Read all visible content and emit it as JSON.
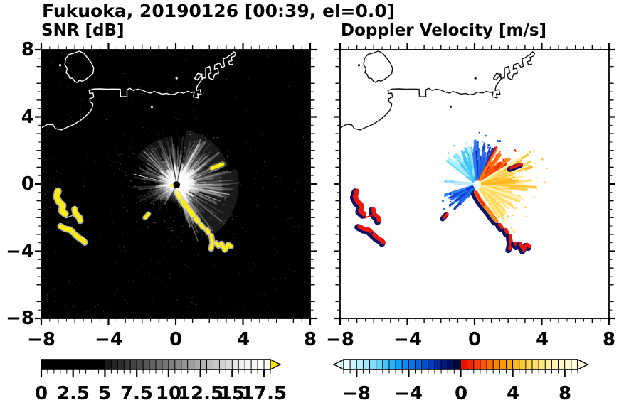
{
  "title": "Fukuoka, 20190126 [00:39, el=0.0]",
  "panels": {
    "snr": {
      "label": "SNR [dB]"
    },
    "doppler": {
      "label": "Doppler Velocity [m/s]"
    }
  },
  "chart_data": {
    "type": "heatmap",
    "subtype": "dual-radar-ppi",
    "site": "Fukuoka",
    "date": "20190126",
    "time": "00:39",
    "elevation": "0.0",
    "axes": {
      "xlim": [
        -8,
        8
      ],
      "ylim": [
        -8,
        8
      ],
      "tick_values": [
        -8,
        -4,
        0,
        4,
        8
      ],
      "x_tick_labels": [
        "−8",
        "−4",
        "0",
        "4",
        "8"
      ],
      "y_tick_labels": [
        "8",
        "4",
        "0",
        "−4",
        "−8"
      ],
      "y_tick_values": [
        8,
        4,
        0,
        -4,
        -8
      ],
      "minor_tick_step": 0.5,
      "grid": false
    },
    "snr": {
      "label": "SNR [dB]",
      "background": "#000000",
      "coast_color": "#ffffff",
      "blob_core": "#ffee00",
      "blob_halo": "#cccccc",
      "center": {
        "x": 0.05,
        "y": -0.05,
        "disk": "#000000",
        "disk_r": 5
      },
      "colorbar": {
        "min": 0,
        "max": 18,
        "tick_values": [
          0,
          2.5,
          5,
          7.5,
          10,
          12.5,
          15,
          17.5
        ],
        "tick_labels": [
          "0",
          "2.5",
          "5",
          "7.5",
          "10",
          "12.5",
          "15",
          "17.5"
        ],
        "over_color": "#ffe800",
        "segments": [
          "#000000",
          "#000000",
          "#000000",
          "#000000",
          "#000000",
          "#000000",
          "#000000",
          "#000000",
          "#000000",
          "#000000",
          "#1a1a1a",
          "#242424",
          "#2e2e2e",
          "#383838",
          "#424242",
          "#4c4c4c",
          "#565656",
          "#616161",
          "#6b6b6b",
          "#757575",
          "#7f7f7f",
          "#898989",
          "#949494",
          "#9e9e9e",
          "#a8a8a8",
          "#b2b2b2",
          "#bcbcbc",
          "#c7c7c7",
          "#d1d1d1",
          "#dbdbdb",
          "#e5e5e5",
          "#efefef",
          "#f4f4f4",
          "#f8f8f8",
          "#fcfcfc",
          "#ffffff"
        ]
      },
      "sectors": [
        {
          "a0": 15,
          "a1": 90,
          "rmax": 3.2,
          "n": 95,
          "o": 0.9
        },
        {
          "a0": 90,
          "a1": 150,
          "rmax": 2.9,
          "n": 60,
          "o": 0.75
        },
        {
          "a0": -75,
          "a1": 15,
          "rmax": 3.6,
          "n": 100,
          "o": 0.85
        },
        {
          "a0": 150,
          "a1": 208,
          "rmax": 2.6,
          "n": 42,
          "o": 0.6
        },
        {
          "a0": 208,
          "a1": 240,
          "rmax": 1.9,
          "n": 20,
          "o": 0.5
        },
        {
          "a0": 256,
          "a1": 286,
          "rmax": 1.3,
          "n": 14,
          "o": 0.5
        }
      ],
      "haze": [
        {
          "a0": 20,
          "a1": 80,
          "r": 3.3,
          "o": 0.1
        },
        {
          "a0": -60,
          "a1": 15,
          "r": 3.7,
          "o": 0.1
        },
        {
          "a0": 95,
          "a1": 145,
          "r": 2.9,
          "o": 0.08
        },
        {
          "a0": -15,
          "a1": 25,
          "r": 2.7,
          "o": 0.09
        }
      ],
      "dark_wedges": [
        {
          "a0": 240,
          "a1": 246,
          "r": 2.4
        },
        {
          "a0": 250,
          "a1": 257,
          "r": 2.1
        },
        {
          "a0": 260,
          "a1": 264,
          "r": 1.3
        }
      ],
      "thin_ray": {
        "angle": 166,
        "len": 2.6
      },
      "dark_rays": [
        {
          "angle": 78,
          "len": 2.2
        },
        {
          "angle": 100,
          "len": 2.0
        }
      ]
    },
    "doppler": {
      "label": "Doppler Velocity [m/s]",
      "background": "#ffffff",
      "coast_color": "#111111",
      "blob_core": "#e8180c",
      "blob_halo": "#0a1464",
      "chain_inner_color": "#ff8c1e",
      "chain_inner_hot": "#f03000",
      "center": {
        "x": 0.15,
        "y": -0.03,
        "disk": "#ffffff",
        "disk_r": 5.5
      },
      "colorbar": {
        "min": -9,
        "max": 9,
        "tick_values": [
          -8,
          -4,
          0,
          4,
          8
        ],
        "tick_labels": [
          "−8",
          "−4",
          "0",
          "4",
          "8"
        ],
        "under_color": "#e9ffff",
        "over_color": "#fffee0",
        "segments": [
          "#e9ffff",
          "#d2f8ff",
          "#b9f0ff",
          "#9fe7ff",
          "#83dcff",
          "#66d0ff",
          "#48c2ff",
          "#2ab2ff",
          "#12a0ff",
          "#058cfa",
          "#0477ee",
          "#0463e1",
          "#044ed3",
          "#0339bd",
          "#02289e",
          "#021a7e",
          "#01105c",
          "#010840",
          "#ea1004",
          "#f52300",
          "#fc3c00",
          "#ff5500",
          "#ff6e00",
          "#ff8500",
          "#ff9900",
          "#ffab0c",
          "#ffbb20",
          "#ffc938",
          "#ffd551",
          "#ffdf6a",
          "#ffe784",
          "#ffee9b",
          "#fff3b0",
          "#fff7c2",
          "#fffbd2",
          "#fffee0"
        ]
      },
      "sectors": [
        {
          "a0": 97,
          "a1": 143,
          "rmax": 2.3,
          "n": 55,
          "colors": [
            "#a8ecff",
            "#6fdcff",
            "#3ec4fb",
            "#bff2ff"
          ]
        },
        {
          "a0": 63,
          "a1": 97,
          "rmax": 2.7,
          "n": 48,
          "colors": [
            "#1e5be8",
            "#0a37ce",
            "#0a1e9e",
            "#2e79f2"
          ]
        },
        {
          "a0": 33,
          "a1": 63,
          "rmax": 2.5,
          "n": 40,
          "colors": [
            "#ff5a00",
            "#f23000",
            "#ff7e14",
            "#e81c0c"
          ]
        },
        {
          "a0": -12,
          "a1": 33,
          "rmax": 3.5,
          "n": 60,
          "colors": [
            "#ffc83c",
            "#ffde7a",
            "#ffb41e",
            "#fff0a8"
          ]
        },
        {
          "a0": -58,
          "a1": -12,
          "rmax": 2.9,
          "n": 55,
          "colors": [
            "#ffe98c",
            "#fff3bc",
            "#ffd34d",
            "#ffde6e"
          ]
        },
        {
          "a0": 196,
          "a1": 233,
          "rmax": 2.1,
          "n": 40,
          "colors": [
            "#1e6ef0",
            "#0a46d8",
            "#3c8cfa",
            "#0a2fb4"
          ]
        },
        {
          "a0": 173,
          "a1": 183,
          "rmax": 2.1,
          "n": 10,
          "colors": [
            "#8fd8ff",
            "#bfeaff"
          ]
        }
      ]
    },
    "features": {
      "coast_mainland": [
        [
          -8,
          3.35
        ],
        [
          -7.62,
          3.55
        ],
        [
          -7.3,
          3.52
        ],
        [
          -7.15,
          3.3
        ],
        [
          -6.8,
          3.22
        ],
        [
          -6.45,
          3.38
        ],
        [
          -6.05,
          3.55
        ],
        [
          -5.65,
          3.8
        ],
        [
          -5.3,
          4.1
        ],
        [
          -5.0,
          4.45
        ],
        [
          -4.92,
          4.78
        ],
        [
          -5.08,
          4.88
        ],
        [
          -5.12,
          5.08
        ],
        [
          -4.88,
          5.18
        ],
        [
          -4.92,
          5.42
        ],
        [
          -5.12,
          5.4
        ],
        [
          -5.15,
          5.58
        ],
        [
          -4.9,
          5.66
        ],
        [
          -4.5,
          5.67
        ],
        [
          -4.1,
          5.65
        ],
        [
          -3.72,
          5.66
        ],
        [
          -3.3,
          5.65
        ],
        [
          -3.28,
          5.2
        ],
        [
          -2.9,
          5.2
        ],
        [
          -2.9,
          5.62
        ],
        [
          -2.72,
          5.7
        ],
        [
          -2.52,
          5.58
        ],
        [
          -2.28,
          5.65
        ],
        [
          -2.0,
          5.6
        ],
        [
          -1.75,
          5.48
        ],
        [
          -1.5,
          5.42
        ],
        [
          -1.28,
          5.52
        ],
        [
          -1.05,
          5.44
        ],
        [
          -0.8,
          5.36
        ],
        [
          -0.55,
          5.4
        ],
        [
          -0.3,
          5.32
        ],
        [
          -0.05,
          5.36
        ],
        [
          0.2,
          5.48
        ],
        [
          0.45,
          5.42
        ],
        [
          0.7,
          5.52
        ],
        [
          0.95,
          5.45
        ],
        [
          1.1,
          5.5
        ],
        [
          1.05,
          5.2
        ],
        [
          1.35,
          5.12
        ],
        [
          1.3,
          5.38
        ],
        [
          1.52,
          5.32
        ],
        [
          1.45,
          5.62
        ],
        [
          1.22,
          5.58
        ],
        [
          1.28,
          5.85
        ],
        [
          1.62,
          6.32
        ],
        [
          1.5,
          6.45
        ],
        [
          1.28,
          6.2
        ],
        [
          1.12,
          6.28
        ],
        [
          1.3,
          6.58
        ],
        [
          1.56,
          6.55
        ],
        [
          1.56,
          6.3
        ],
        [
          1.78,
          6.32
        ],
        [
          1.78,
          6.92
        ],
        [
          2.02,
          7.0
        ],
        [
          2.1,
          6.62
        ],
        [
          1.95,
          6.55
        ],
        [
          2.0,
          6.3
        ],
        [
          2.22,
          6.22
        ],
        [
          2.32,
          6.55
        ],
        [
          2.55,
          6.6
        ],
        [
          2.5,
          6.9
        ],
        [
          2.3,
          6.85
        ],
        [
          2.32,
          7.1
        ],
        [
          2.6,
          7.2
        ],
        [
          2.75,
          6.95
        ],
        [
          2.9,
          7.02
        ],
        [
          2.82,
          7.45
        ],
        [
          3.0,
          7.52
        ],
        [
          3.3,
          7.72
        ],
        [
          3.45,
          7.88
        ],
        [
          3.58,
          7.8
        ],
        [
          3.5,
          7.62
        ],
        [
          3.3,
          7.55
        ],
        [
          3.35,
          7.35
        ],
        [
          3.15,
          7.3
        ],
        [
          3.2,
          7.1
        ],
        [
          3.42,
          7.15
        ]
      ],
      "coast_island": [
        [
          -6.55,
          7.48
        ],
        [
          -6.35,
          7.72
        ],
        [
          -6.05,
          7.8
        ],
        [
          -5.72,
          7.92
        ],
        [
          -5.45,
          7.78
        ],
        [
          -5.25,
          7.52
        ],
        [
          -5.02,
          7.22
        ],
        [
          -4.88,
          6.92
        ],
        [
          -4.92,
          6.6
        ],
        [
          -5.15,
          6.38
        ],
        [
          -5.38,
          6.22
        ],
        [
          -5.58,
          6.12
        ],
        [
          -5.72,
          6.18
        ],
        [
          -5.88,
          6.05
        ],
        [
          -6.02,
          6.12
        ],
        [
          -6.12,
          6.28
        ],
        [
          -6.32,
          6.32
        ],
        [
          -6.38,
          6.52
        ],
        [
          -6.52,
          6.62
        ],
        [
          -6.46,
          6.9
        ],
        [
          -6.6,
          7.1
        ],
        [
          -6.55,
          7.48
        ]
      ],
      "coast_dots": [
        [
          -6.88,
          7.08
        ],
        [
          -1.42,
          4.6
        ],
        [
          0.05,
          6.3
        ]
      ],
      "blobs_left": [
        {
          "pts": [
            [
              -7.0,
              -0.42
            ],
            [
              -7.1,
              -0.75
            ],
            [
              -6.95,
              -1.05
            ],
            [
              -6.72,
              -1.28
            ],
            [
              -6.78,
              -1.6
            ],
            [
              -6.58,
              -1.78
            ]
          ],
          "w": 7
        },
        {
          "pts": [
            [
              -6.02,
              -1.5
            ],
            [
              -5.95,
              -1.8
            ],
            [
              -5.72,
              -2.0
            ],
            [
              -5.68,
              -2.18
            ]
          ],
          "w": 6
        },
        {
          "pts": [
            [
              -6.85,
              -2.52
            ],
            [
              -6.55,
              -2.68
            ],
            [
              -6.28,
              -2.72
            ],
            [
              -6.12,
              -2.88
            ]
          ],
          "w": 6
        },
        {
          "pts": [
            [
              -5.98,
              -3.02
            ],
            [
              -5.75,
              -3.22
            ],
            [
              -5.52,
              -3.35
            ],
            [
              -5.42,
              -3.48
            ]
          ],
          "w": 6
        }
      ],
      "thin_link": {
        "pts": [
          [
            -6.55,
            -2.02
          ],
          [
            -6.1,
            -1.86
          ]
        ],
        "w": 1.5
      },
      "dash_small": {
        "pts": [
          [
            -1.82,
            -2.0
          ],
          [
            -1.62,
            -1.78
          ]
        ],
        "w": 4
      },
      "chain_inner": {
        "pts": [
          [
            0.08,
            -0.5
          ],
          [
            0.3,
            -0.9
          ],
          [
            0.55,
            -1.25
          ],
          [
            0.85,
            -1.6
          ],
          [
            1.1,
            -1.95
          ],
          [
            1.3,
            -2.2
          ]
        ],
        "w": 6
      },
      "chain_outer": [
        {
          "pts": [
            [
              1.5,
              -2.42
            ],
            [
              1.62,
              -2.58
            ]
          ],
          "w": 5
        },
        {
          "pts": [
            [
              1.85,
              -2.72
            ],
            [
              1.95,
              -2.9
            ]
          ],
          "w": 5
        },
        {
          "pts": [
            [
              2.12,
              -3.1
            ],
            [
              2.18,
              -3.5
            ],
            [
              2.1,
              -3.85
            ]
          ],
          "w": 5
        },
        {
          "pts": [
            [
              2.42,
              -3.52
            ],
            [
              2.55,
              -3.68
            ]
          ],
          "w": 5
        },
        {
          "pts": [
            [
              2.72,
              -3.55
            ],
            [
              2.92,
              -3.92
            ],
            [
              3.12,
              -3.6
            ],
            [
              3.28,
              -3.72
            ]
          ],
          "w": 5
        }
      ],
      "streak_upper_right": {
        "pts": [
          [
            2.15,
            0.95
          ],
          [
            2.78,
            1.18
          ]
        ],
        "w": 5
      }
    }
  }
}
